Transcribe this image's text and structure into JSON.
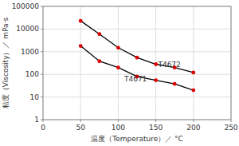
{
  "chart_data": {
    "type": "line",
    "title": "",
    "xlabel": "温度（Temperature）／ °C",
    "ylabel": "粘度（Viscosity）／ mPa·s",
    "log": "y",
    "grid": true,
    "marker": "circle",
    "xlim": [
      0,
      250
    ],
    "ylim": [
      1,
      100000
    ],
    "xticks": [
      0,
      50,
      100,
      150,
      200,
      250
    ],
    "yticks": [
      1,
      10,
      100,
      1000,
      10000,
      100000
    ],
    "x": [
      50,
      75,
      100,
      125,
      150,
      175,
      200
    ],
    "series": [
      {
        "name": "T4672",
        "color": "#000000",
        "values": [
          23000,
          6000,
          1500,
          550,
          280,
          200,
          120
        ]
      },
      {
        "name": "T4671",
        "color": "#000000",
        "values": [
          1800,
          380,
          200,
          80,
          55,
          38,
          20
        ]
      }
    ],
    "annotations": [
      {
        "text": "T4672",
        "x": 153,
        "y": 270
      },
      {
        "text": "T4671",
        "x": 108,
        "y": 62
      }
    ]
  }
}
